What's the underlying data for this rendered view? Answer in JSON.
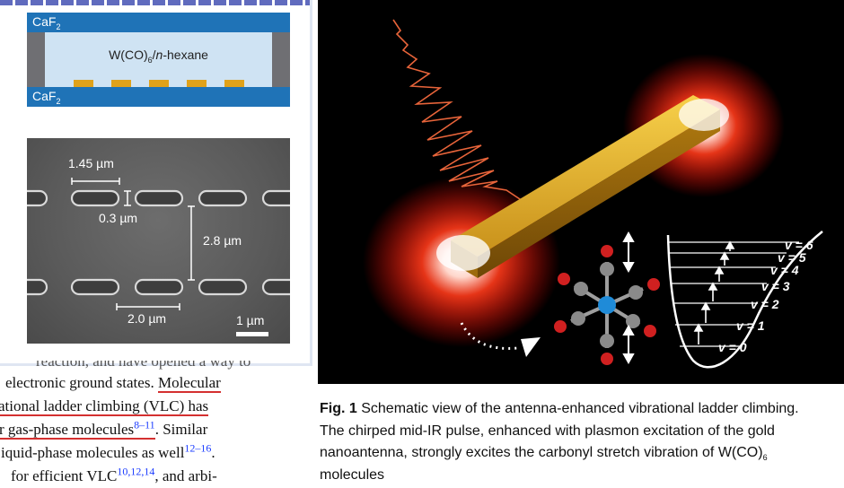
{
  "cell_schematic": {
    "top_window": "CaF",
    "top_window_sub": "2",
    "bottom_window": "CaF",
    "bottom_window_sub": "2",
    "solution_pre": "W(CO)",
    "solution_sub": "6",
    "solution_mid": "/",
    "solution_italic": "n",
    "solution_post": "-hexane"
  },
  "sem_image": {
    "width_label": "1.45 µm",
    "gap_label": "0.3 µm",
    "row_spacing_label": "2.8 µm",
    "pitch_label": "2.0 µm",
    "scale_bar_label": "1 µm"
  },
  "body_text": {
    "line1": "reaction, and have opened a way to",
    "line2_a": "electronic ground states. ",
    "line2_b": "Molecular",
    "line3_a": "ational ladder climbing (VLC) has",
    "line4_a": "r gas-phase molecules",
    "line4_ref": "8–11",
    "line4_b": ". Similar",
    "line5_a": "iquid-phase molecules as well",
    "line5_ref": "12–16",
    "line5_b": ".",
    "line6_a": "for efficient VLC",
    "line6_ref": "10,12,14",
    "line6_b": ", and arbi-"
  },
  "ladder_levels": [
    "v = 0",
    "v = 1",
    "v = 2",
    "v = 3",
    "v = 4",
    "v = 5",
    "v = 6"
  ],
  "caption": {
    "label": "Fig. 1",
    "line1": " Schematic view of the antenna-enhanced vibrational ladder climbing.",
    "line2": "The chirped mid-IR pulse, enhanced with plasmon excitation of the gold",
    "line3_a": "nanoantenna, strongly excites the carbonyl stretch vibration of W(CO)",
    "line3_sub": "6",
    "line4": "molecules"
  },
  "colors": {
    "caf2_blue": "#1f73b7",
    "gold": "#e0a21a",
    "underline_red": "#d43030",
    "reference_blue": "#1b3cff"
  }
}
